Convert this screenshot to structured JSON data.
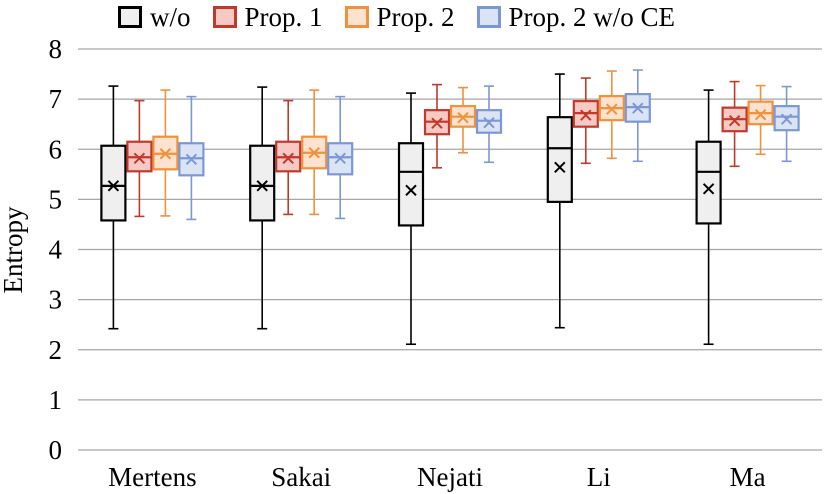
{
  "chart_data": {
    "type": "box",
    "title": "",
    "xlabel": "",
    "ylabel": "Entropy",
    "ylim": [
      0,
      8
    ],
    "yticks": [
      "0",
      "1",
      "2",
      "3",
      "4",
      "5",
      "6",
      "7",
      "8"
    ],
    "grid": true,
    "legend_position": "top",
    "categories": [
      "Mertens",
      "Sakai",
      "Nejati",
      "Li",
      "Ma"
    ],
    "series": [
      {
        "name": "w/o",
        "stroke": "#000000",
        "fill": "#efefef",
        "boxes": [
          {
            "min": 2.42,
            "q1": 4.58,
            "median": 5.27,
            "q3": 6.07,
            "max": 7.26,
            "mean": 5.27
          },
          {
            "min": 2.42,
            "q1": 4.58,
            "median": 5.27,
            "q3": 6.07,
            "max": 7.24,
            "mean": 5.27
          },
          {
            "min": 2.11,
            "q1": 4.48,
            "median": 5.55,
            "q3": 6.12,
            "max": 7.12,
            "mean": 5.18
          },
          {
            "min": 2.44,
            "q1": 4.95,
            "median": 6.02,
            "q3": 6.64,
            "max": 7.5,
            "mean": 5.64
          },
          {
            "min": 2.11,
            "q1": 4.52,
            "median": 5.55,
            "q3": 6.15,
            "max": 7.18,
            "mean": 5.21
          }
        ]
      },
      {
        "name": "Prop. 1",
        "stroke": "#c0392b",
        "fill": "#f6c9c4",
        "boxes": [
          {
            "min": 4.66,
            "q1": 5.56,
            "median": 5.84,
            "q3": 6.15,
            "max": 6.97,
            "mean": 5.82
          },
          {
            "min": 4.7,
            "q1": 5.56,
            "median": 5.84,
            "q3": 6.15,
            "max": 6.97,
            "mean": 5.82
          },
          {
            "min": 5.63,
            "q1": 6.3,
            "median": 6.55,
            "q3": 6.78,
            "max": 7.29,
            "mean": 6.52
          },
          {
            "min": 5.72,
            "q1": 6.45,
            "median": 6.72,
            "q3": 6.96,
            "max": 7.42,
            "mean": 6.68
          },
          {
            "min": 5.66,
            "q1": 6.36,
            "median": 6.6,
            "q3": 6.83,
            "max": 7.35,
            "mean": 6.57
          }
        ]
      },
      {
        "name": "Prop. 2",
        "stroke": "#f0913d",
        "fill": "#fde3cf",
        "boxes": [
          {
            "min": 4.67,
            "q1": 5.6,
            "median": 5.91,
            "q3": 6.25,
            "max": 7.18,
            "mean": 5.91
          },
          {
            "min": 4.7,
            "q1": 5.62,
            "median": 5.93,
            "q3": 6.25,
            "max": 7.18,
            "mean": 5.93
          },
          {
            "min": 5.93,
            "q1": 6.45,
            "median": 6.65,
            "q3": 6.86,
            "max": 7.23,
            "mean": 6.63
          },
          {
            "min": 5.82,
            "q1": 6.58,
            "median": 6.82,
            "q3": 7.06,
            "max": 7.56,
            "mean": 6.8
          },
          {
            "min": 5.9,
            "q1": 6.5,
            "median": 6.72,
            "q3": 6.95,
            "max": 7.27,
            "mean": 6.69
          }
        ]
      },
      {
        "name": "Prop. 2 w/o CE",
        "stroke": "#7b98d6",
        "fill": "#dbe4f5",
        "boxes": [
          {
            "min": 4.6,
            "q1": 5.48,
            "median": 5.82,
            "q3": 6.12,
            "max": 7.05,
            "mean": 5.8
          },
          {
            "min": 4.62,
            "q1": 5.5,
            "median": 5.84,
            "q3": 6.12,
            "max": 7.05,
            "mean": 5.82
          },
          {
            "min": 5.74,
            "q1": 6.33,
            "median": 6.57,
            "q3": 6.78,
            "max": 7.26,
            "mean": 6.53
          },
          {
            "min": 5.76,
            "q1": 6.55,
            "median": 6.84,
            "q3": 7.1,
            "max": 7.58,
            "mean": 6.82
          },
          {
            "min": 5.76,
            "q1": 6.38,
            "median": 6.65,
            "q3": 6.86,
            "max": 7.25,
            "mean": 6.6
          }
        ]
      }
    ]
  }
}
